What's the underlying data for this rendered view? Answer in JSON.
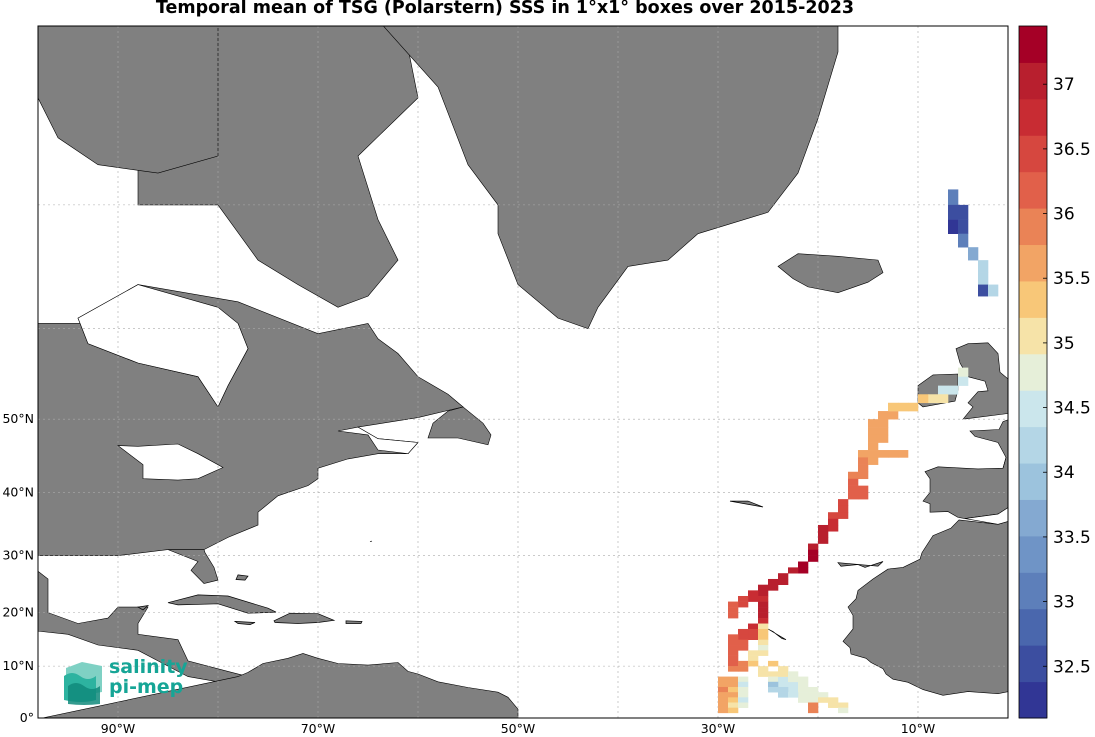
{
  "title": "Temporal mean of TSG (Polarstern) SSS in 1°x1° boxes over 2015-2023",
  "map": {
    "lon_range": [
      -98,
      -1
    ],
    "lat_range": [
      0,
      79
    ],
    "land_color": "#808080",
    "ocean_color": "#ffffff",
    "grid": true,
    "lon_ticks": [
      {
        "lon": -90,
        "label": "90°W"
      },
      {
        "lon": -70,
        "label": "70°W"
      },
      {
        "lon": -50,
        "label": "50°W"
      },
      {
        "lon": -30,
        "label": "30°W"
      },
      {
        "lon": -10,
        "label": "10°W"
      }
    ],
    "lat_ticks": [
      {
        "lat": 0,
        "label": "0°"
      },
      {
        "lat": 10,
        "label": "10°N"
      },
      {
        "lat": 20,
        "label": "20°N"
      },
      {
        "lat": 30,
        "label": "30°N"
      },
      {
        "lat": 40,
        "label": "40°N"
      },
      {
        "lat": 50,
        "label": "50°N"
      }
    ]
  },
  "colorbar": {
    "min": 32.1,
    "max": 37.45,
    "ticks": [
      {
        "v": 32.5,
        "label": "32.5"
      },
      {
        "v": 33,
        "label": "33"
      },
      {
        "v": 33.5,
        "label": "33.5"
      },
      {
        "v": 34,
        "label": "34"
      },
      {
        "v": 34.5,
        "label": "34.5"
      },
      {
        "v": 35,
        "label": "35"
      },
      {
        "v": 35.5,
        "label": "35.5"
      },
      {
        "v": 36,
        "label": "36"
      },
      {
        "v": 36.5,
        "label": "36.5"
      },
      {
        "v": 37,
        "label": "37"
      }
    ],
    "colors": [
      "#313695",
      "#3c4ea0",
      "#4a67ad",
      "#5d7fba",
      "#6f94c6",
      "#84a9d1",
      "#9cc3dd",
      "#b4d6e6",
      "#cbe6ec",
      "#e6efd9",
      "#f6e3a8",
      "#f8c778",
      "#f2a465",
      "#ea8356",
      "#e1604a",
      "#d6473f",
      "#c82c33",
      "#b81f2e",
      "#a50026"
    ]
  },
  "chart_data": {
    "type": "heatmap",
    "title": "Temporal mean of TSG (Polarstern) SSS in 1°x1° boxes over 2015-2023",
    "units": "SSS",
    "cells": [
      [
        -7,
        70,
        33.1
      ],
      [
        -7,
        69,
        32.5
      ],
      [
        -7,
        68,
        32.3
      ],
      [
        -6,
        69,
        32.4
      ],
      [
        -6,
        68,
        32.4
      ],
      [
        -6,
        67,
        33.2
      ],
      [
        -5,
        66,
        33.6
      ],
      [
        -4,
        65,
        34.1
      ],
      [
        -4,
        64,
        34.3
      ],
      [
        -4,
        63,
        32.6
      ],
      [
        -3,
        63,
        34.1
      ],
      [
        -6,
        55,
        34.8
      ],
      [
        -6,
        54,
        34.6
      ],
      [
        -7,
        53,
        34.5
      ],
      [
        -8,
        53,
        34.6
      ],
      [
        -8,
        52,
        35.1
      ],
      [
        -9,
        52,
        35.1
      ],
      [
        -10,
        52,
        35.2
      ],
      [
        -11,
        51,
        35.3
      ],
      [
        -12,
        51,
        35.3
      ],
      [
        -13,
        50,
        35.5
      ],
      [
        -13,
        51,
        35.4
      ],
      [
        -14,
        50,
        35.6
      ],
      [
        -14,
        49,
        35.6
      ],
      [
        -14,
        48,
        35.6
      ],
      [
        -14,
        47,
        35.7
      ],
      [
        -15,
        49,
        35.6
      ],
      [
        -15,
        48,
        35.7
      ],
      [
        -15,
        47,
        35.7
      ],
      [
        -15,
        46,
        35.7
      ],
      [
        -12,
        45,
        35.7
      ],
      [
        -13,
        45,
        35.6
      ],
      [
        -14,
        45,
        35.6
      ],
      [
        -15,
        45,
        35.6
      ],
      [
        -16,
        45,
        35.7
      ],
      [
        -16,
        44,
        35.8
      ],
      [
        -15,
        44,
        35.7
      ],
      [
        -16,
        43,
        35.9
      ],
      [
        -16,
        42,
        36.0
      ],
      [
        -17,
        42,
        36.0
      ],
      [
        -17,
        41,
        36.1
      ],
      [
        -17,
        40,
        36.2
      ],
      [
        -16,
        40,
        36.1
      ],
      [
        -16,
        39,
        36.2
      ],
      [
        -17,
        39,
        36.2
      ],
      [
        -18,
        38,
        36.4
      ],
      [
        -18,
        37,
        36.5
      ],
      [
        -18,
        36,
        36.6
      ],
      [
        -19,
        36,
        36.6
      ],
      [
        -19,
        35,
        36.7
      ],
      [
        -19,
        34,
        36.8
      ],
      [
        -20,
        34,
        36.9
      ],
      [
        -20,
        33,
        37.0
      ],
      [
        -20,
        32,
        37.0
      ],
      [
        -21,
        31,
        37.1
      ],
      [
        -21,
        30,
        37.2
      ],
      [
        -21,
        29,
        37.3
      ],
      [
        -22,
        28,
        37.2
      ],
      [
        -22,
        27,
        37.2
      ],
      [
        -23,
        27,
        37.1
      ],
      [
        -24,
        26,
        37.1
      ],
      [
        -24,
        25,
        37.1
      ],
      [
        -25,
        25,
        37.0
      ],
      [
        -25,
        24,
        37.0
      ],
      [
        -26,
        24,
        37.0
      ],
      [
        -26,
        23,
        36.9
      ],
      [
        -27,
        23,
        36.8
      ],
      [
        -27,
        22,
        36.7
      ],
      [
        -28,
        22,
        36.5
      ],
      [
        -28,
        21,
        36.4
      ],
      [
        -29,
        21,
        36.3
      ],
      [
        -26,
        22,
        36.8
      ],
      [
        -26,
        21,
        36.9
      ],
      [
        -26,
        20,
        36.9
      ],
      [
        -26,
        19,
        36.9
      ],
      [
        -26,
        18,
        36.8
      ],
      [
        -27,
        17,
        36.7
      ],
      [
        -27,
        16,
        36.6
      ],
      [
        -27,
        15,
        36.5
      ],
      [
        -29,
        20,
        36.3
      ],
      [
        -29,
        19,
        36.3
      ],
      [
        -28,
        16,
        36.4
      ],
      [
        -28,
        15,
        36.4
      ],
      [
        -29,
        15,
        36.3
      ],
      [
        -29,
        14,
        36.3
      ],
      [
        -29,
        13,
        36.3
      ],
      [
        -29,
        12,
        36.2
      ],
      [
        -29,
        11,
        36.2
      ],
      [
        -29,
        10,
        36.1
      ],
      [
        -29,
        9,
        36.0
      ],
      [
        -28,
        14,
        36.2
      ],
      [
        -28,
        13,
        36.1
      ],
      [
        -28,
        10,
        36.0
      ],
      [
        -28,
        9,
        35.9
      ],
      [
        -26,
        17,
        35.1
      ],
      [
        -26,
        16,
        35.2
      ],
      [
        -26,
        15,
        35.2
      ],
      [
        -26,
        14,
        35.1
      ],
      [
        -26,
        13,
        34.9
      ],
      [
        -26,
        12,
        35.0
      ],
      [
        -27,
        12,
        35.1
      ],
      [
        -27,
        11,
        35.1
      ],
      [
        -27,
        10,
        35.2
      ],
      [
        -30,
        7,
        35.6
      ],
      [
        -30,
        6,
        35.7
      ],
      [
        -30,
        5,
        35.8
      ],
      [
        -30,
        4,
        35.6
      ],
      [
        -30,
        3,
        35.5
      ],
      [
        -30,
        2,
        35.6
      ],
      [
        -30,
        1,
        35.7
      ],
      [
        -29,
        7,
        35.7
      ],
      [
        -29,
        6,
        35.6
      ],
      [
        -29,
        5,
        35.4
      ],
      [
        -29,
        4,
        35.5
      ],
      [
        -29,
        3,
        35.2
      ],
      [
        -29,
        2,
        35.1
      ],
      [
        -29,
        1,
        35.4
      ],
      [
        -28,
        7,
        34.7
      ],
      [
        -28,
        6,
        34.6
      ],
      [
        -28,
        5,
        34.8
      ],
      [
        -28,
        4,
        34.7
      ],
      [
        -28,
        3,
        34.6
      ],
      [
        -28,
        2,
        34.7
      ],
      [
        -26,
        9,
        35.1
      ],
      [
        -26,
        8,
        35.0
      ],
      [
        -25,
        8,
        35.0
      ],
      [
        -25,
        7,
        34.8
      ],
      [
        -24,
        7,
        34.6
      ],
      [
        -24,
        6,
        34.5
      ],
      [
        -23,
        6,
        34.5
      ],
      [
        -23,
        5,
        34.6
      ],
      [
        -22,
        5,
        34.8
      ],
      [
        -22,
        4,
        34.8
      ],
      [
        -22,
        3,
        34.9
      ],
      [
        -21,
        4,
        34.8
      ],
      [
        -21,
        3,
        34.9
      ],
      [
        -25,
        10,
        35.2
      ],
      [
        -24,
        9,
        35.1
      ],
      [
        -24,
        8,
        35.0
      ],
      [
        -23,
        8,
        34.9
      ],
      [
        -23,
        7,
        34.9
      ],
      [
        -22,
        7,
        34.8
      ],
      [
        -22,
        6,
        34.8
      ],
      [
        -21,
        5,
        34.9
      ],
      [
        -20,
        4,
        34.9
      ],
      [
        -20,
        3,
        35.0
      ],
      [
        -19,
        3,
        35.0
      ],
      [
        -19,
        2,
        35.0
      ],
      [
        -18,
        2,
        35.0
      ],
      [
        -18,
        1,
        34.9
      ],
      [
        -21,
        2,
        35.8
      ],
      [
        -21,
        1,
        35.9
      ],
      [
        -25,
        6,
        33.9
      ],
      [
        -24,
        5,
        34.1
      ],
      [
        -24,
        4,
        34.3
      ],
      [
        -23,
        4,
        34.5
      ],
      [
        -25,
        5,
        34.3
      ]
    ]
  },
  "logo": {
    "line1": "salinity",
    "line2": "pi-mep",
    "color": "#16a596"
  }
}
